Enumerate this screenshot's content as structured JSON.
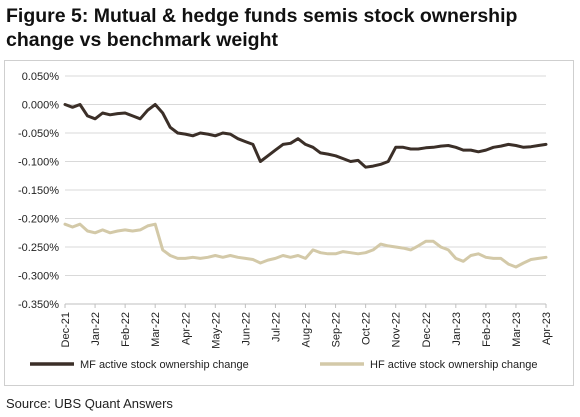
{
  "title": "Figure 5: Mutual & hedge funds semis stock ownership change vs benchmark weight",
  "source": "Source: UBS Quant Answers",
  "chart_data": {
    "type": "line",
    "x_tick_labels": [
      "Dec-21",
      "Jan-22",
      "Feb-22",
      "Mar-22",
      "Apr-22",
      "May-22",
      "Jun-22",
      "Jul-22",
      "Aug-22",
      "Sep-22",
      "Oct-22",
      "Nov-22",
      "Dec-22",
      "Jan-23",
      "Feb-23",
      "Mar-23",
      "Apr-23"
    ],
    "y_ticks": [
      0.0005,
      0.0,
      -0.0005,
      -0.001,
      -0.0015,
      -0.002,
      -0.0025,
      -0.003,
      -0.0035
    ],
    "y_tick_labels": [
      "0.050%",
      "0.000%",
      "-0.050%",
      "-0.100%",
      "-0.150%",
      "-0.200%",
      "-0.250%",
      "-0.300%",
      "-0.350%"
    ],
    "ylim": [
      -0.0035,
      0.0005
    ],
    "xlim": [
      0,
      16
    ],
    "grid": "horizontal",
    "legend_position": "bottom",
    "series": [
      {
        "name": "MF active stock ownership change",
        "color": "#3b2f28",
        "x": [
          0,
          0.25,
          0.5,
          0.75,
          1,
          1.25,
          1.5,
          1.75,
          2,
          2.25,
          2.5,
          2.75,
          3,
          3.25,
          3.5,
          3.75,
          4,
          4.25,
          4.5,
          4.75,
          5,
          5.25,
          5.5,
          5.75,
          6,
          6.25,
          6.5,
          6.75,
          7,
          7.25,
          7.5,
          7.75,
          8,
          8.25,
          8.5,
          8.75,
          9,
          9.25,
          9.5,
          9.75,
          10,
          10.25,
          10.5,
          10.75,
          11,
          11.25,
          11.5,
          11.75,
          12,
          12.25,
          12.5,
          12.75,
          13,
          13.25,
          13.5,
          13.75,
          14,
          14.25,
          14.5,
          14.75,
          15,
          15.25,
          15.5,
          15.75,
          16
        ],
        "values": [
          0.0,
          -5e-05,
          0.0,
          -0.0002,
          -0.00025,
          -0.00015,
          -0.00018,
          -0.00016,
          -0.00015,
          -0.0002,
          -0.00025,
          -0.0001,
          0.0,
          -0.00015,
          -0.0004,
          -0.0005,
          -0.00052,
          -0.00055,
          -0.0005,
          -0.00052,
          -0.00055,
          -0.0005,
          -0.00052,
          -0.0006,
          -0.00065,
          -0.0007,
          -0.001,
          -0.0009,
          -0.0008,
          -0.0007,
          -0.00068,
          -0.0006,
          -0.0007,
          -0.00075,
          -0.00085,
          -0.00087,
          -0.0009,
          -0.00095,
          -0.001,
          -0.00098,
          -0.0011,
          -0.00108,
          -0.00105,
          -0.001,
          -0.00075,
          -0.00075,
          -0.00078,
          -0.00078,
          -0.00076,
          -0.00075,
          -0.00073,
          -0.00072,
          -0.00075,
          -0.0008,
          -0.0008,
          -0.00083,
          -0.0008,
          -0.00075,
          -0.00073,
          -0.0007,
          -0.00072,
          -0.00075,
          -0.00074,
          -0.00072,
          -0.0007
        ]
      },
      {
        "name": "HF active stock ownership change",
        "color": "#d3c9a8",
        "x": [
          0,
          0.25,
          0.5,
          0.75,
          1,
          1.25,
          1.5,
          1.75,
          2,
          2.25,
          2.5,
          2.75,
          3,
          3.25,
          3.5,
          3.75,
          4,
          4.25,
          4.5,
          4.75,
          5,
          5.25,
          5.5,
          5.75,
          6,
          6.25,
          6.5,
          6.75,
          7,
          7.25,
          7.5,
          7.75,
          8,
          8.25,
          8.5,
          8.75,
          9,
          9.25,
          9.5,
          9.75,
          10,
          10.25,
          10.5,
          10.75,
          11,
          11.25,
          11.5,
          11.75,
          12,
          12.25,
          12.5,
          12.75,
          13,
          13.25,
          13.5,
          13.75,
          14,
          14.25,
          14.5,
          14.75,
          15,
          15.25,
          15.5,
          15.75,
          16
        ],
        "values": [
          -0.0021,
          -0.00215,
          -0.0021,
          -0.00222,
          -0.00225,
          -0.0022,
          -0.00225,
          -0.00222,
          -0.0022,
          -0.00222,
          -0.0022,
          -0.00213,
          -0.0021,
          -0.00255,
          -0.00265,
          -0.0027,
          -0.0027,
          -0.00268,
          -0.0027,
          -0.00268,
          -0.00265,
          -0.00268,
          -0.00265,
          -0.00268,
          -0.0027,
          -0.00272,
          -0.00278,
          -0.00273,
          -0.0027,
          -0.00265,
          -0.00268,
          -0.00265,
          -0.0027,
          -0.00255,
          -0.0026,
          -0.00262,
          -0.00262,
          -0.00258,
          -0.0026,
          -0.00262,
          -0.0026,
          -0.00255,
          -0.00245,
          -0.00248,
          -0.0025,
          -0.00252,
          -0.00255,
          -0.00248,
          -0.0024,
          -0.0024,
          -0.0025,
          -0.00255,
          -0.0027,
          -0.00275,
          -0.00265,
          -0.00262,
          -0.00268,
          -0.0027,
          -0.0027,
          -0.0028,
          -0.00285,
          -0.00278,
          -0.00272,
          -0.0027,
          -0.00268
        ]
      }
    ]
  }
}
